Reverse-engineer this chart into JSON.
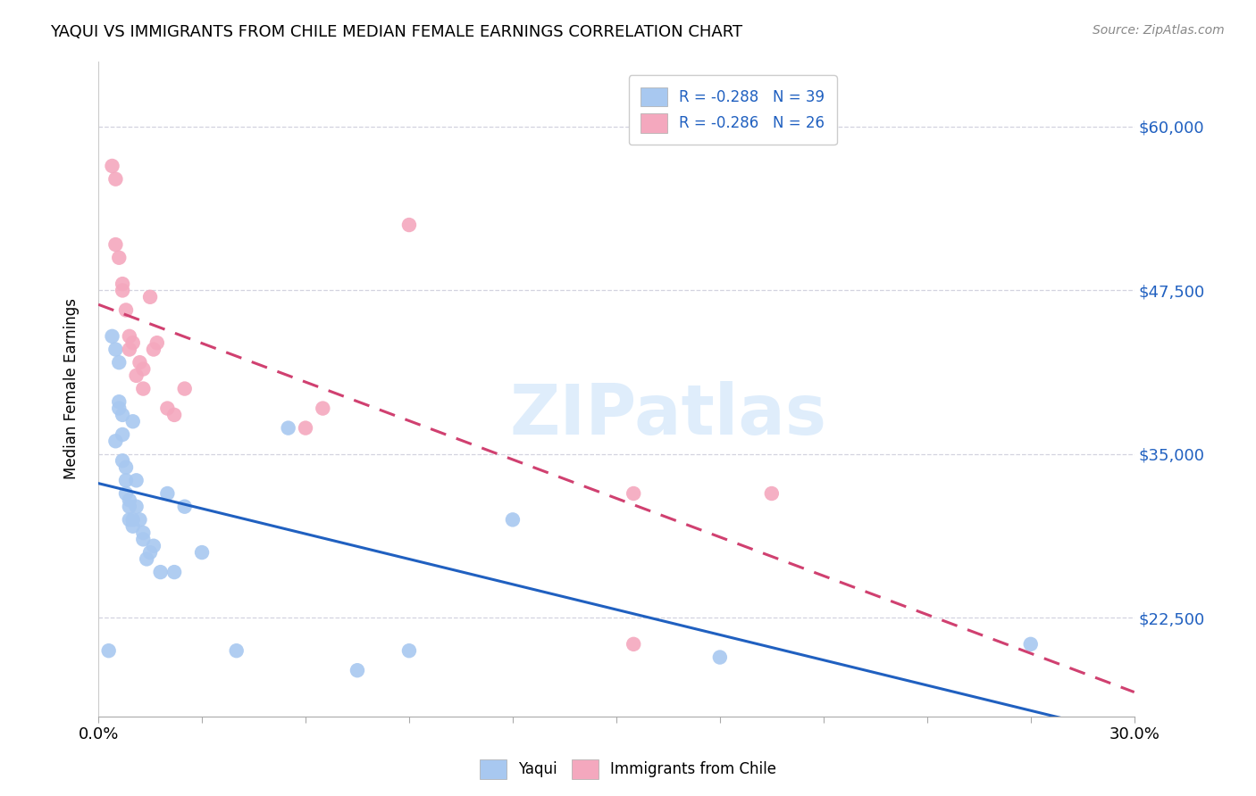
{
  "title": "YAQUI VS IMMIGRANTS FROM CHILE MEDIAN FEMALE EARNINGS CORRELATION CHART",
  "source": "Source: ZipAtlas.com",
  "ylabel_label": "Median Female Earnings",
  "xlim": [
    0.0,
    0.3
  ],
  "ylim": [
    15000,
    65000
  ],
  "xtick_values": [
    0.0,
    0.03,
    0.06,
    0.09,
    0.12,
    0.15,
    0.18,
    0.21,
    0.24,
    0.27,
    0.3
  ],
  "xtick_label_left": "0.0%",
  "xtick_label_right": "30.0%",
  "ytick_values": [
    22500,
    35000,
    47500,
    60000
  ],
  "ytick_labels": [
    "$22,500",
    "$35,000",
    "$47,500",
    "$60,000"
  ],
  "legend_labels": [
    "Yaqui",
    "Immigrants from Chile"
  ],
  "r_yaqui": "-0.288",
  "n_yaqui": "39",
  "r_chile": "-0.286",
  "n_chile": "26",
  "color_yaqui": "#a8c8f0",
  "color_chile": "#f4a8be",
  "line_color_yaqui": "#2060c0",
  "line_color_chile": "#d04070",
  "watermark": "ZIPatlas",
  "yaqui_x": [
    0.003,
    0.004,
    0.005,
    0.005,
    0.006,
    0.006,
    0.006,
    0.007,
    0.007,
    0.007,
    0.008,
    0.008,
    0.008,
    0.009,
    0.009,
    0.009,
    0.01,
    0.01,
    0.01,
    0.011,
    0.011,
    0.012,
    0.013,
    0.013,
    0.014,
    0.015,
    0.016,
    0.018,
    0.02,
    0.022,
    0.025,
    0.03,
    0.04,
    0.055,
    0.075,
    0.09,
    0.12,
    0.18,
    0.27
  ],
  "yaqui_y": [
    20000,
    44000,
    43000,
    36000,
    42000,
    39000,
    38500,
    38000,
    36500,
    34500,
    34000,
    33000,
    32000,
    31500,
    31000,
    30000,
    37500,
    30000,
    29500,
    33000,
    31000,
    30000,
    28500,
    29000,
    27000,
    27500,
    28000,
    26000,
    32000,
    26000,
    31000,
    27500,
    20000,
    37000,
    18500,
    20000,
    30000,
    19500,
    20500
  ],
  "chile_x": [
    0.004,
    0.005,
    0.005,
    0.006,
    0.007,
    0.007,
    0.008,
    0.009,
    0.009,
    0.01,
    0.011,
    0.012,
    0.013,
    0.013,
    0.015,
    0.016,
    0.017,
    0.02,
    0.022,
    0.025,
    0.06,
    0.065,
    0.09,
    0.155,
    0.195,
    0.155
  ],
  "chile_y": [
    57000,
    56000,
    51000,
    50000,
    48000,
    47500,
    46000,
    44000,
    43000,
    43500,
    41000,
    42000,
    41500,
    40000,
    47000,
    43000,
    43500,
    38500,
    38000,
    40000,
    37000,
    38500,
    52500,
    20500,
    32000,
    32000
  ]
}
